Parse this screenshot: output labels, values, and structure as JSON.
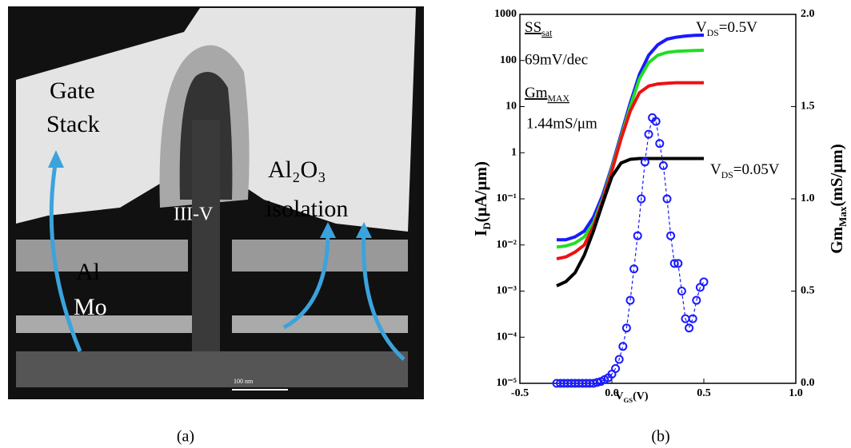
{
  "image_panel": {
    "panel_label": "(a)",
    "gate": "Gate",
    "stack": "Stack",
    "oxide": "Al₂O₃",
    "isolation": "isolation",
    "channel": "III-V",
    "al": "Al",
    "mo": "Mo",
    "scale_bar": "100 nm"
  },
  "chart_data": {
    "type": "line",
    "panel_label": "(b)",
    "yscale": "log",
    "xlabel": {
      "main": "V",
      "sub": "GS",
      "rest": "(V)"
    },
    "ylabel": {
      "main": "I",
      "sub": "D",
      "rest": "(μA/μm)"
    },
    "y2label": {
      "main": "Gm",
      "sub": "Max",
      "rest": "(mS/μm)"
    },
    "annotations": {
      "ss": {
        "main": "SS",
        "sub": "sat"
      },
      "ss_value": "69mV/dec",
      "gm": {
        "main": "Gm",
        "sub": "MAX"
      },
      "gm_value": "1.44mS/μm",
      "vds_high": {
        "main": "V",
        "sub": "DS",
        "rest": "=0.5V"
      },
      "vds_low": {
        "main": "V",
        "sub": "DS",
        "rest": "=0.05V"
      }
    },
    "xlim": [
      -0.5,
      1.0
    ],
    "xticks": [
      -0.5,
      {
        "value": 0,
        "label": "0.0"
      },
      0.5,
      {
        "value": 1.0,
        "label": "1.0"
      }
    ],
    "ylim": [
      1e-05,
      1000
    ],
    "yticks": [
      {
        "value": 1e-05,
        "label": "10⁻⁵"
      },
      {
        "value": 0.0001,
        "label": "10⁻⁴"
      },
      {
        "value": 0.001,
        "label": "10⁻³"
      },
      {
        "value": 0.01,
        "label": "10⁻²"
      },
      {
        "value": 0.1,
        "label": "10⁻¹"
      },
      1,
      10,
      100,
      1000
    ],
    "y2lim": [
      0,
      2.0
    ],
    "y2ticks": [
      {
        "value": 0,
        "label": "0.0"
      },
      0.5,
      {
        "value": 1.0,
        "label": "1.0"
      },
      1.5,
      {
        "value": 2.0,
        "label": "2.0"
      }
    ],
    "x": [
      -0.3,
      -0.25,
      -0.2,
      -0.15,
      -0.1,
      -0.05,
      0,
      0.05,
      0.1,
      0.15,
      0.2,
      0.25,
      0.3,
      0.35,
      0.4,
      0.45,
      0.5
    ],
    "series": [
      {
        "color": "#1a1aff",
        "values": [
          0.013,
          0.013,
          0.015,
          0.02,
          0.04,
          0.12,
          0.5,
          2.5,
          12,
          50,
          130,
          220,
          290,
          320,
          340,
          350,
          355
        ]
      },
      {
        "color": "#22dd22",
        "values": [
          0.009,
          0.0095,
          0.011,
          0.015,
          0.03,
          0.1,
          0.45,
          2.2,
          10,
          40,
          90,
          130,
          150,
          158,
          162,
          165,
          167
        ]
      },
      {
        "color": "#ee1111",
        "values": [
          0.005,
          0.0055,
          0.007,
          0.01,
          0.025,
          0.09,
          0.4,
          2,
          8,
          20,
          28,
          31,
          32,
          33,
          33,
          33,
          33
        ]
      },
      {
        "color": "#000000",
        "values": [
          0.0013,
          0.0016,
          0.0025,
          0.006,
          0.02,
          0.08,
          0.3,
          0.6,
          0.72,
          0.75,
          0.75,
          0.75,
          0.75,
          0.75,
          0.75,
          0.75,
          0.75
        ]
      },
      {
        "color": "#1a1aff",
        "axis": "y2",
        "marker": "circle",
        "x": [
          -0.3,
          -0.28,
          -0.26,
          -0.24,
          -0.22,
          -0.2,
          -0.18,
          -0.16,
          -0.14,
          -0.12,
          -0.1,
          -0.08,
          -0.06,
          -0.04,
          -0.02,
          0,
          0.02,
          0.04,
          0.06,
          0.08,
          0.1,
          0.12,
          0.14,
          0.16,
          0.18,
          0.2,
          0.22,
          0.24,
          0.26,
          0.28,
          0.3,
          0.32,
          0.34,
          0.36,
          0.38,
          0.4,
          0.42,
          0.44,
          0.46,
          0.48,
          0.5
        ],
        "values": [
          0,
          0,
          0,
          0,
          0,
          0,
          0,
          0,
          0,
          0,
          0,
          0.005,
          0.01,
          0.02,
          0.03,
          0.05,
          0.08,
          0.13,
          0.2,
          0.3,
          0.45,
          0.62,
          0.8,
          1.0,
          1.2,
          1.35,
          1.44,
          1.42,
          1.3,
          1.18,
          1.0,
          0.8,
          0.65,
          0.65,
          0.5,
          0.35,
          0.3,
          0.35,
          0.45,
          0.52,
          0.55
        ]
      }
    ]
  }
}
